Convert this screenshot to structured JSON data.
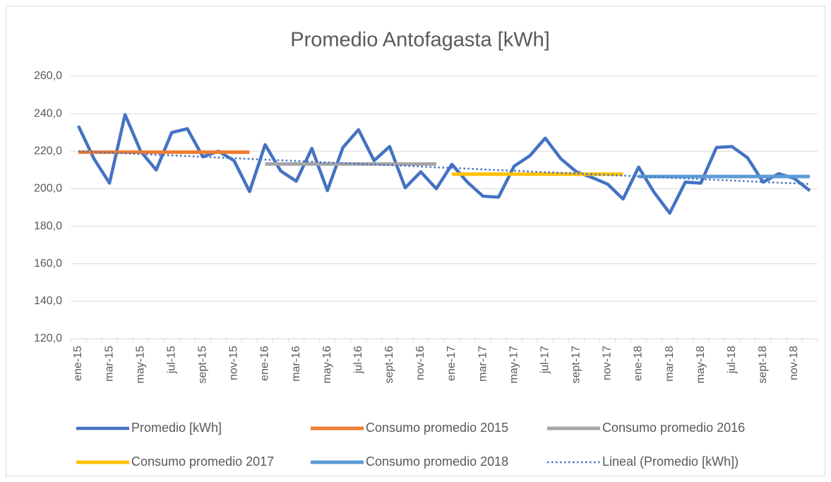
{
  "chart_data": {
    "type": "line",
    "title": "Promedio Antofagasta [kWh]",
    "categories": [
      "ene-15",
      null,
      "mar-15",
      null,
      "may-15",
      null,
      "jul-15",
      null,
      "sept-15",
      null,
      "nov-15",
      null,
      "ene-16",
      null,
      "mar-16",
      null,
      "may-16",
      null,
      "jul-16",
      null,
      "sept-16",
      null,
      "nov-16",
      null,
      "ene-17",
      null,
      "mar-17",
      null,
      "may-17",
      null,
      "jul-17",
      null,
      "sept-17",
      null,
      "nov-17",
      null,
      "ene-18",
      null,
      "mar-18",
      null,
      "may-18",
      null,
      "jul-18",
      null,
      "sept-18",
      null,
      "nov-18",
      null
    ],
    "ylim": [
      120,
      260
    ],
    "yticks": [
      {
        "value": 120,
        "label": "120,0"
      },
      {
        "value": 140,
        "label": "140,0"
      },
      {
        "value": 160,
        "label": "160,0"
      },
      {
        "value": 180,
        "label": "180,0"
      },
      {
        "value": 200,
        "label": "200,0"
      },
      {
        "value": 220,
        "label": "220,0"
      },
      {
        "value": 240,
        "label": "240,0"
      },
      {
        "value": 260,
        "label": "260,0"
      }
    ],
    "grid": true,
    "legend": "bottom",
    "series": [
      {
        "name": "Promedio [kWh]",
        "color": "#4472c4",
        "style": "solid",
        "values": [
          233.5,
          216,
          203,
          239.5,
          220,
          210,
          230,
          232,
          217,
          220,
          215,
          198.5,
          223.5,
          209.5,
          204,
          221.5,
          199,
          222,
          231.5,
          215,
          222.5,
          200.5,
          209,
          200,
          213,
          203.5,
          196,
          195.5,
          212,
          217.5,
          227,
          216,
          209,
          206,
          202.5,
          194.5,
          211.5,
          198,
          187,
          203.5,
          203,
          222,
          222.5,
          216.5,
          203.5,
          208,
          205.5,
          199
        ]
      },
      {
        "name": "Consumo promedio 2015",
        "color": "#ed7d31",
        "style": "thick",
        "values": [
          219.5,
          219.5,
          219.5,
          219.5,
          219.5,
          219.5,
          219.5,
          219.5,
          219.5,
          219.5,
          219.5,
          219.5,
          null,
          null,
          null,
          null,
          null,
          null,
          null,
          null,
          null,
          null,
          null,
          null,
          null,
          null,
          null,
          null,
          null,
          null,
          null,
          null,
          null,
          null,
          null,
          null,
          null,
          null,
          null,
          null,
          null,
          null,
          null,
          null,
          null,
          null,
          null,
          null
        ]
      },
      {
        "name": "Consumo promedio 2016",
        "color": "#a5a5a5",
        "style": "thick",
        "values": [
          null,
          null,
          null,
          null,
          null,
          null,
          null,
          null,
          null,
          null,
          null,
          null,
          213.2,
          213.2,
          213.2,
          213.2,
          213.2,
          213.2,
          213.2,
          213.2,
          213.2,
          213.2,
          213.2,
          213.2,
          null,
          null,
          null,
          null,
          null,
          null,
          null,
          null,
          null,
          null,
          null,
          null,
          null,
          null,
          null,
          null,
          null,
          null,
          null,
          null,
          null,
          null,
          null,
          null
        ]
      },
      {
        "name": "Consumo promedio 2017",
        "color": "#ffc000",
        "style": "thick",
        "values": [
          null,
          null,
          null,
          null,
          null,
          null,
          null,
          null,
          null,
          null,
          null,
          null,
          null,
          null,
          null,
          null,
          null,
          null,
          null,
          null,
          null,
          null,
          null,
          null,
          207.8,
          207.8,
          207.8,
          207.8,
          207.8,
          207.8,
          207.8,
          207.8,
          207.8,
          207.8,
          207.8,
          207.8,
          null,
          null,
          null,
          null,
          null,
          null,
          null,
          null,
          null,
          null,
          null,
          null
        ]
      },
      {
        "name": "Consumo promedio 2018",
        "color": "#5b9bd5",
        "style": "thick",
        "values": [
          null,
          null,
          null,
          null,
          null,
          null,
          null,
          null,
          null,
          null,
          null,
          null,
          null,
          null,
          null,
          null,
          null,
          null,
          null,
          null,
          null,
          null,
          null,
          null,
          null,
          null,
          null,
          null,
          null,
          null,
          null,
          null,
          null,
          null,
          null,
          null,
          206.5,
          206.5,
          206.5,
          206.5,
          206.5,
          206.5,
          206.5,
          206.5,
          206.5,
          206.5,
          206.5,
          206.5
        ]
      },
      {
        "name": "Lineal (Promedio [kWh])",
        "color": "#4472c4",
        "style": "dotted",
        "values": [
          220,
          219.6,
          219.3,
          218.9,
          218.5,
          218.1,
          217.8,
          217.4,
          217,
          216.6,
          216.3,
          215.9,
          215.5,
          215.2,
          214.8,
          214.4,
          214,
          213.7,
          213.3,
          212.9,
          212.6,
          212.2,
          211.8,
          211.4,
          211.1,
          210.7,
          210.3,
          209.9,
          209.6,
          209.2,
          208.8,
          208.5,
          208.1,
          207.7,
          207.3,
          207,
          206.6,
          206.2,
          205.9,
          205.5,
          205.1,
          204.7,
          204.4,
          204,
          203.6,
          203.2,
          202.9,
          202.5
        ]
      }
    ]
  }
}
